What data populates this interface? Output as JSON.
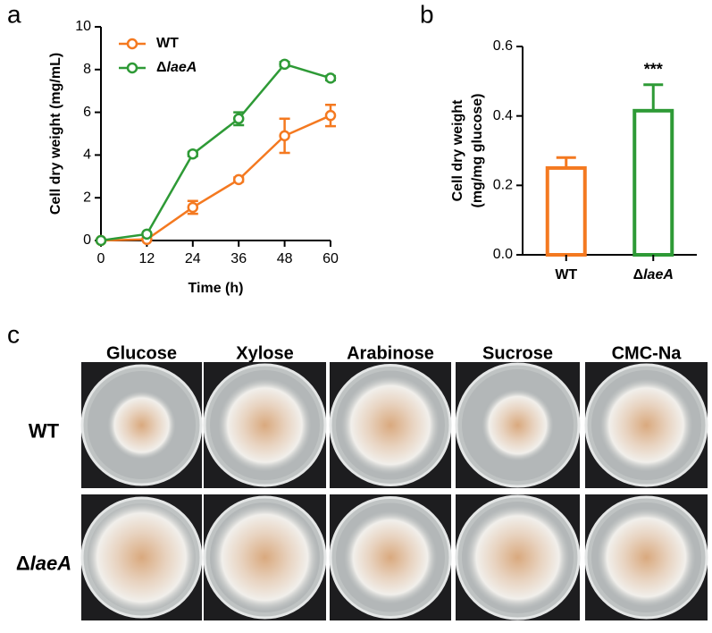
{
  "chart_data": [
    {
      "type": "line",
      "panel": "a",
      "x_label": "Time (h)",
      "y_label": "Cell dry weight (mg/mL)",
      "x": [
        0,
        12,
        24,
        36,
        48,
        60
      ],
      "xlim": [
        0,
        60
      ],
      "xticks": [
        0,
        12,
        24,
        36,
        48,
        60
      ],
      "ylim": [
        0,
        10
      ],
      "yticks": [
        0,
        2,
        4,
        6,
        8,
        10
      ],
      "legend": "upper left",
      "series": [
        {
          "name": "WT",
          "color": "#f47920",
          "values": [
            0,
            0.05,
            1.55,
            2.85,
            4.9,
            5.85
          ],
          "errors": [
            0,
            0,
            0.3,
            0.1,
            0.8,
            0.5
          ]
        },
        {
          "name": "ΔlaeA",
          "color": "#2e9a36",
          "values": [
            0,
            0.3,
            4.05,
            5.7,
            8.25,
            7.6
          ],
          "errors": [
            0,
            0,
            0.1,
            0.3,
            0.1,
            0.1
          ]
        }
      ]
    },
    {
      "type": "bar",
      "panel": "b",
      "y_label": [
        "Cell dry weight",
        "(mg/mg glucose)"
      ],
      "categories": [
        "WT",
        "ΔlaeA"
      ],
      "colors": [
        "#f47920",
        "#2e9a36"
      ],
      "values": [
        0.25,
        0.415
      ],
      "errors": [
        0.03,
        0.075
      ],
      "annotation": "***",
      "ylim": [
        0,
        0.6
      ],
      "yticks": [
        {
          "value": 0,
          "label": "0.0"
        },
        {
          "value": 0.2,
          "label": "0.2"
        },
        {
          "value": 0.4,
          "label": "0.4"
        },
        {
          "value": 0.6,
          "label": "0.6"
        }
      ]
    }
  ],
  "photo_grid": {
    "panel": "c",
    "columns": [
      "Glucose",
      "Xylose",
      "Arabinose",
      "Sucrose",
      "CMC-Na"
    ],
    "rows": [
      "WT",
      "ΔlaeA"
    ]
  }
}
